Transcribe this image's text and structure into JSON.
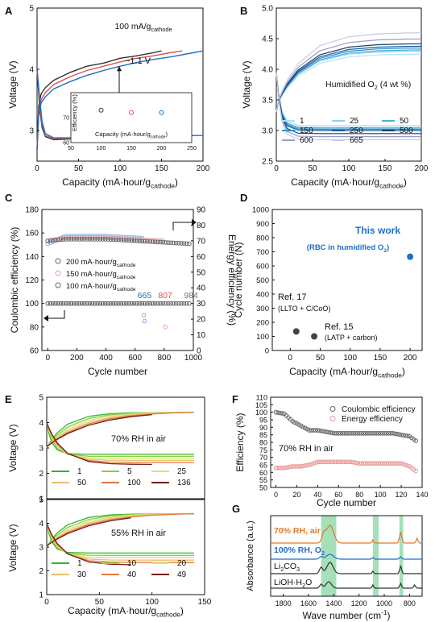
{
  "colors": {
    "black": "#333333",
    "red": "#d9534f",
    "blue": "#1f6fc4",
    "gray": "#777777",
    "pinkmark": "#e89a9a",
    "bluemark": "#7fb2e5",
    "graymark": "#666666",
    "green": "#2fb52f",
    "highlight": "#8fd8a8"
  },
  "chart_data": [
    {
      "panel": "A",
      "type": "line",
      "xlabel": "Capacity (mA·hour/g",
      "xlabel_sub": "cathode",
      "ylabel": "Voltage (V)",
      "xlim": [
        0,
        200
      ],
      "ylim": [
        2.5,
        5
      ],
      "xticks": [
        "0",
        "50",
        "100",
        "150",
        "200"
      ],
      "yticks": [
        "3",
        "4",
        "5"
      ],
      "annotation_rate": "100 mA/g",
      "annotation_rate_sub": "cathode",
      "annotation_gap": "~1.1 V",
      "series": [
        {
          "color": "black",
          "charge": {
            "x": [
              0,
              2,
              5,
              10,
              20,
              40,
              60,
              80,
              100,
              120,
              140,
              150
            ],
            "y": [
              2.7,
              3.4,
              3.6,
              3.7,
              3.82,
              3.95,
              4.05,
              4.1,
              4.18,
              4.22,
              4.27,
              4.3
            ]
          },
          "discharge": {
            "x": [
              0,
              3,
              6,
              10,
              20,
              40
            ],
            "y": [
              4.0,
              3.4,
              3.05,
              2.9,
              2.85,
              2.86
            ]
          }
        },
        {
          "color": "red",
          "charge": {
            "x": [
              0,
              2,
              5,
              10,
              20,
              40,
              60,
              80,
              100,
              120,
              140,
              160,
              175
            ],
            "y": [
              2.7,
              3.3,
              3.5,
              3.62,
              3.75,
              3.88,
              3.98,
              4.05,
              4.12,
              4.18,
              4.22,
              4.27,
              4.3
            ]
          },
          "discharge": {
            "x": [
              0,
              3,
              6,
              10,
              20,
              40,
              80,
              120
            ],
            "y": [
              4.0,
              3.5,
              3.1,
              2.92,
              2.87,
              2.87,
              2.88,
              2.89
            ]
          }
        },
        {
          "color": "blue",
          "charge": {
            "x": [
              0,
              2,
              5,
              10,
              20,
              40,
              60,
              80,
              100,
              120,
              140,
              160,
              180,
              200
            ],
            "y": [
              2.7,
              3.25,
              3.45,
              3.55,
              3.68,
              3.8,
              3.9,
              3.98,
              4.05,
              4.11,
              4.16,
              4.2,
              4.25,
              4.3
            ]
          },
          "discharge": {
            "x": [
              0,
              3,
              6,
              10,
              20,
              40,
              80,
              120,
              160,
              200
            ],
            "y": [
              4.0,
              3.55,
              3.15,
              2.95,
              2.88,
              2.88,
              2.89,
              2.9,
              2.91,
              2.92
            ]
          }
        }
      ],
      "inset": {
        "type": "scatter",
        "xlabel": "Capacity (mA·hour/g",
        "xlabel_sub": "cathode",
        "ylabel": "Efficiency (%)",
        "xlim": [
          50,
          250
        ],
        "ylim": [
          60,
          80
        ],
        "xticks": [
          "50",
          "100",
          "150",
          "200",
          "250"
        ],
        "yticks": [
          "60",
          "70"
        ],
        "points": [
          {
            "x": 100,
            "y": 73,
            "color": "black"
          },
          {
            "x": 150,
            "y": 72,
            "color": "red"
          },
          {
            "x": 200,
            "y": 72,
            "color": "blue"
          }
        ]
      }
    },
    {
      "panel": "B",
      "type": "line",
      "xlabel": "Capacity (mA·hour/g",
      "xlabel_sub": "cathode",
      "ylabel": "Voltage (V)",
      "xlim": [
        0,
        200
      ],
      "ylim": [
        2.5,
        5
      ],
      "xticks": [
        "0",
        "50",
        "100",
        "150",
        "200"
      ],
      "yticks": [
        "2.5",
        "3.0",
        "3.5",
        "4.0",
        "4.5",
        "5.0"
      ],
      "annotation": "Humidified O",
      "annotation_sub": "2",
      "annotation_tail": " (4 wt %)",
      "legend": [
        {
          "label": "1",
          "color": "#b5e1f5"
        },
        {
          "label": "25",
          "color": "#8fd0ef"
        },
        {
          "label": "50",
          "color": "#4aaee0"
        },
        {
          "label": "150",
          "color": "#2b8fd0"
        },
        {
          "label": "250",
          "color": "#1b5f9a"
        },
        {
          "label": "500",
          "color": "#1a3f6a"
        },
        {
          "label": "600",
          "color": "#9b9bc8"
        },
        {
          "label": "665",
          "color": "#c8c8e6"
        }
      ],
      "series": [
        {
          "name": "1",
          "charge_end": 4.15,
          "discharge_end": 3.08
        },
        {
          "name": "25",
          "charge_end": 4.2,
          "discharge_end": 3.05
        },
        {
          "name": "50",
          "charge_end": 4.22,
          "discharge_end": 3.04
        },
        {
          "name": "150",
          "charge_end": 4.25,
          "discharge_end": 3.02
        },
        {
          "name": "250",
          "charge_end": 4.28,
          "discharge_end": 3.0
        },
        {
          "name": "500",
          "charge_end": 4.32,
          "discharge_end": 2.95
        },
        {
          "name": "600",
          "charge_end": 4.4,
          "discharge_end": 2.9
        },
        {
          "name": "665",
          "charge_end": 4.5,
          "discharge_end": 2.85
        }
      ]
    },
    {
      "panel": "C",
      "type": "scatter",
      "xlabel": "Cycle number",
      "ylabel": "Coulombic efficiency (%)",
      "ylabel2": "Energy efficiency (%)",
      "xlim": [
        0,
        1000
      ],
      "ylim": [
        60,
        180
      ],
      "ylim2": [
        0,
        90
      ],
      "xticks": [
        "0",
        "200",
        "400",
        "600",
        "800",
        "1000"
      ],
      "yticks": [
        "60",
        "80",
        "100",
        "120",
        "140",
        "160",
        "180"
      ],
      "yticks2": [
        "0",
        "10",
        "20",
        "30",
        "40",
        "50",
        "60",
        "70",
        "80",
        "90"
      ],
      "legend": [
        {
          "label": "200 mA·hour/g",
          "sub": "cathode",
          "color": "graymark"
        },
        {
          "label": "150 mA·hour/g",
          "sub": "cathode",
          "color": "pinkmark"
        },
        {
          "label": "100 mA·hour/g",
          "sub": "cathode",
          "color": "graymark"
        }
      ],
      "end_labels": [
        {
          "text": "665",
          "x": 665,
          "color": "blue"
        },
        {
          "text": "807",
          "x": 807,
          "color": "red"
        },
        {
          "text": "984",
          "x": 984,
          "color": "gray"
        }
      ],
      "series": [
        {
          "name": "200",
          "cycles": 665,
          "ce": 100,
          "ee_start": 68,
          "ee_mid": 73,
          "color": "bluemark"
        },
        {
          "name": "150",
          "cycles": 807,
          "ce": 100,
          "ee_start": 70,
          "ee_mid": 72,
          "color": "pinkmark"
        },
        {
          "name": "100",
          "cycles": 984,
          "ce": 100,
          "ee_start": 70,
          "ee_mid": 71,
          "color": "graymark"
        }
      ]
    },
    {
      "panel": "D",
      "type": "scatter",
      "xlabel": "Capacity (mA·hour/g",
      "xlabel_sub": "cathode",
      "ylabel": "Cycle number (N)",
      "xlim": [
        -30,
        220
      ],
      "ylim": [
        0,
        1000
      ],
      "xticks": [
        "0",
        "50",
        "100",
        "150",
        "200"
      ],
      "yticks": [
        "0",
        "100",
        "200",
        "300",
        "400",
        "500",
        "600",
        "700",
        "800",
        "900",
        "1000"
      ],
      "points": [
        {
          "x": 200,
          "y": 665,
          "label": "This work",
          "sublabel": "(RBC in humidified O",
          "sublabel_sub": "2",
          "sublabel_tail": ")",
          "color": "blue"
        },
        {
          "x": 10,
          "y": 135,
          "label": "Ref. 17",
          "sublabel": "(LLTO + C/CoO)",
          "color": "black"
        },
        {
          "x": 40,
          "y": 100,
          "label": "Ref. 15",
          "sublabel": "(LATP + carbon)",
          "color": "black"
        }
      ]
    },
    {
      "panel": "E",
      "type": "line",
      "xlabel": "Capacity (mA·hour/g",
      "xlabel_sub": "cathode",
      "ylabel": "Voltage (V)",
      "xlim": [
        0,
        150
      ],
      "ylim": [
        1,
        5
      ],
      "xticks": [
        "0",
        "50",
        "100",
        "150"
      ],
      "yticks": [
        "1",
        "2",
        "3",
        "4",
        "5"
      ],
      "top": {
        "annotation": "70% RH in air",
        "legend": [
          {
            "label": "1",
            "color": "#2fb52f"
          },
          {
            "label": "5",
            "color": "#8ccf3a"
          },
          {
            "label": "25",
            "color": "#d9e07a"
          },
          {
            "label": "50",
            "color": "#e8c070"
          },
          {
            "label": "100",
            "color": "#e07a3a"
          },
          {
            "label": "136",
            "color": "#7a1a1a"
          }
        ]
      },
      "bottom": {
        "annotation": "55% RH in air",
        "legend": [
          {
            "label": "1",
            "color": "#2fb52f"
          },
          {
            "label": "10",
            "color": "#8ccf3a"
          },
          {
            "label": "20",
            "color": "#d9e07a"
          },
          {
            "label": "30",
            "color": "#e8c070"
          },
          {
            "label": "40",
            "color": "#e07a3a"
          },
          {
            "label": "49",
            "color": "#7a1a1a"
          }
        ]
      }
    },
    {
      "panel": "F",
      "type": "scatter",
      "xlabel": "Cycle number",
      "ylabel": "Efficiency (%)",
      "xlim": [
        0,
        140
      ],
      "ylim": [
        50,
        110
      ],
      "xticks": [
        "0",
        "20",
        "40",
        "60",
        "80",
        "100",
        "120",
        "140"
      ],
      "yticks": [
        "50",
        "55",
        "60",
        "65",
        "70",
        "75",
        "80",
        "85",
        "90",
        "95",
        "100",
        "105",
        "110"
      ],
      "annotation": "70% RH in air",
      "legend": [
        {
          "label": "Coulombic efficiency",
          "color": "graymark"
        },
        {
          "label": "Energy efficiency",
          "color": "pinkmark"
        }
      ],
      "ce": {
        "x": [
          0,
          8,
          16,
          24,
          32,
          40,
          48,
          56,
          64,
          72,
          80,
          88,
          96,
          104,
          112,
          120,
          128,
          134
        ],
        "y": [
          100,
          99,
          94,
          91,
          88,
          88,
          87,
          86,
          86,
          86,
          86,
          86,
          86,
          86,
          86,
          85,
          84,
          81
        ]
      },
      "ee": {
        "x": [
          0,
          8,
          16,
          24,
          32,
          40,
          48,
          56,
          64,
          72,
          80,
          88,
          96,
          104,
          112,
          120,
          128,
          134
        ],
        "y": [
          63,
          63,
          64,
          64,
          65,
          67,
          67,
          67,
          67,
          67,
          66,
          66,
          66,
          66,
          66,
          66,
          64,
          61
        ]
      }
    },
    {
      "panel": "G",
      "type": "line",
      "xlabel": "Wave number (cm",
      "xlabel_sup": "-1",
      "ylabel": "Absorbance (a.u.)",
      "xlim": [
        1900,
        700
      ],
      "xticks": [
        "1800",
        "1600",
        "1400",
        "1200",
        "1000",
        "800"
      ],
      "highlight_bands": [
        [
          1500,
          1380
        ],
        [
          1090,
          1070
        ],
        [
          880,
          850
        ]
      ],
      "series": [
        {
          "name": "70% RH, air",
          "color": "#e07a2a"
        },
        {
          "name": "100% RH, O",
          "name_sub": "2",
          "color": "#1f6fc4"
        },
        {
          "name": "Li",
          "name_sub": "2",
          "name_tail": "CO",
          "name_sub2": "3",
          "color": "#333333"
        },
        {
          "name": "LiOH·H",
          "name_sub": "2",
          "name_tail": "O",
          "color": "#333333"
        }
      ]
    }
  ],
  "panel_labels": [
    "A",
    "B",
    "C",
    "D",
    "E",
    "F",
    "G"
  ]
}
